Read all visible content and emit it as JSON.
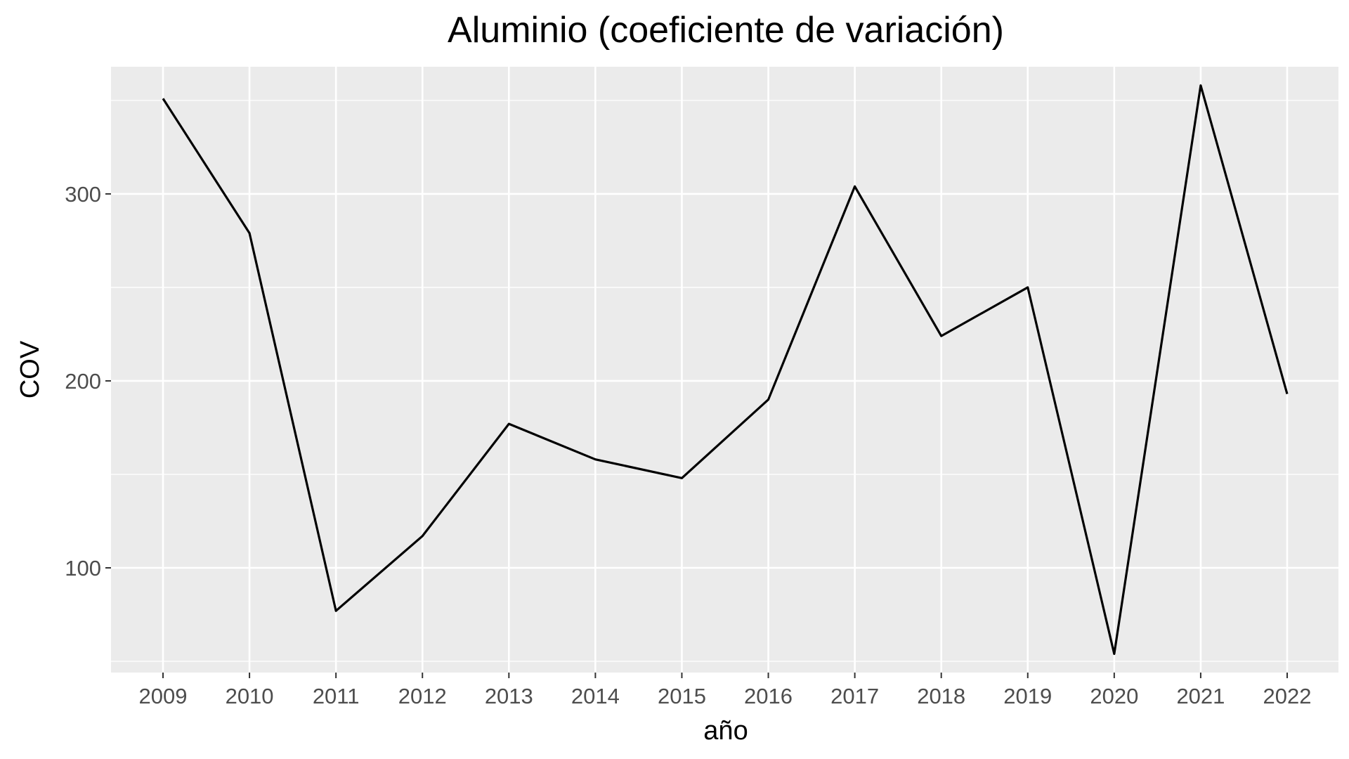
{
  "chart_data": {
    "type": "line",
    "title": "Aluminio (coeficiente de variación)",
    "xlabel": "año",
    "ylabel": "COV",
    "x": [
      2009,
      2010,
      2011,
      2012,
      2013,
      2014,
      2015,
      2016,
      2017,
      2018,
      2019,
      2020,
      2021,
      2022
    ],
    "x_tick_labels": [
      "2009",
      "2010",
      "2011",
      "2012",
      "2013",
      "2014",
      "2015",
      "2016",
      "2017",
      "2018",
      "2019",
      "2020",
      "2021",
      "2022"
    ],
    "series": [
      {
        "values": [
          351,
          279,
          77,
          117,
          177,
          158,
          148,
          190,
          304,
          224,
          250,
          54,
          358,
          193
        ],
        "color": "#000000"
      }
    ],
    "ylim": [
      44,
      368
    ],
    "y_major_ticks": [
      100,
      200,
      300
    ],
    "y_tick_labels": [
      "100",
      "200",
      "300"
    ],
    "y_minor_ticks": [
      50,
      150,
      250,
      350
    ],
    "grid": true,
    "panel_background": "#ebebeb",
    "gridline_color": "#ffffff",
    "legend": "none"
  }
}
